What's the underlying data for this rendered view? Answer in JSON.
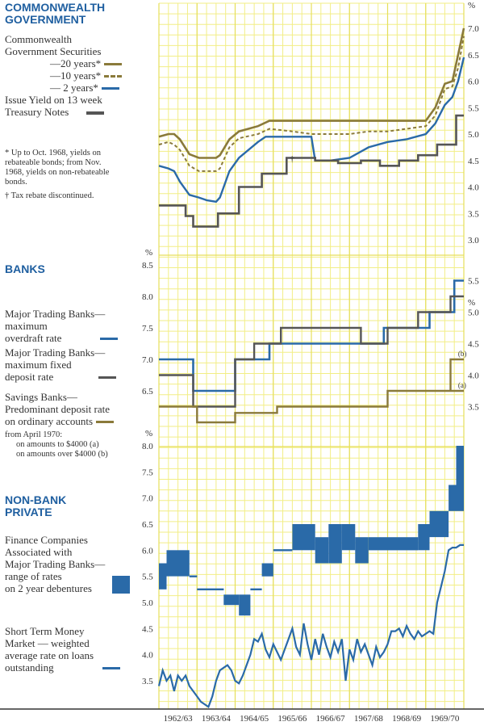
{
  "colors": {
    "grid": "#f2ee86",
    "gold": "#8a7a3a",
    "blue": "#2a6aa8",
    "grey": "#555555",
    "heading": "#1f5fa0"
  },
  "sections": {
    "government": {
      "heading": "COMMONWEALTH GOVERNMENT",
      "heading_l1": "COMMONWEALTH",
      "heading_l2": "GOVERNMENT",
      "legend_title_l1": "Commonwealth",
      "legend_title_l2": "Government Securities",
      "legend": {
        "y20": "—20 years*",
        "y10": "—10 years*",
        "y2": "— 2 years*",
        "tn_l1": "Issue Yield on 13 week",
        "tn_l2": "Treasury Notes"
      },
      "footnote_l1": "* Up to Oct. 1968, yields on",
      "footnote_l2": "rebateable bonds; from Nov.",
      "footnote_l3": "1968, yields on non-rebateable",
      "footnote_l4": "bonds.",
      "tax_note": "† Tax rebate discontinued.",
      "dagger": "†"
    },
    "banks": {
      "heading": "BANKS",
      "overdraft_l1": "Major Trading Banks—",
      "overdraft_l2": "maximum",
      "overdraft_l3": "overdraft rate",
      "deposit_l1": "Major Trading Banks—",
      "deposit_l2": "maximum fixed",
      "deposit_l3": "deposit rate",
      "savings_l1": "Savings Banks—",
      "savings_l2": "Predominant deposit rate",
      "savings_l3": "on ordinary accounts",
      "april_l1": "from April 1970:",
      "april_l2": "on amounts to $4000 (a)",
      "april_l3": "on amounts over $4000 (b)",
      "mark_a": "a",
      "mark_b": "b"
    },
    "nonbank": {
      "heading_l1": "NON-BANK",
      "heading_l2": "PRIVATE",
      "finance_l1": "Finance Companies",
      "finance_l2": "Associated with",
      "finance_l3": "Major Trading Banks—",
      "finance_l4": "range of rates",
      "finance_l5": "on 2 year debentures",
      "money_l1": "Short Term Money",
      "money_l2": "Market — weighted",
      "money_l3": "average rate on loans",
      "money_l4": "outstanding"
    }
  },
  "chart_data": [
    {
      "type": "line",
      "panel": "government",
      "x_categories": [
        "1962/63",
        "1963/64",
        "1964/65",
        "1965/66",
        "1966/67",
        "1967/68",
        "1968/69",
        "1969/70"
      ],
      "x_range": [
        1962.5,
        1970.5
      ],
      "unit": "%",
      "y_ticks": [
        "7.0",
        "6.5",
        "6.0",
        "5.5",
        "5.0",
        "4.5",
        "4.0",
        "3.5",
        "3.0"
      ],
      "ylim": [
        3.0,
        7.0
      ],
      "axis_side": "right",
      "series": [
        {
          "name": "20 years",
          "style": "solid-gold",
          "x": [
            1962.5,
            1962.75,
            1962.9,
            1963.05,
            1963.3,
            1963.55,
            1963.75,
            1964.0,
            1964.1,
            1964.35,
            1964.6,
            1965.1,
            1965.4,
            1966.0,
            1966.5,
            1967.0,
            1967.5,
            1968.0,
            1968.5,
            1969.0,
            1969.5,
            1969.75,
            1970.0,
            1970.2,
            1970.35,
            1970.5
          ],
          "y": [
            4.95,
            5.0,
            5.0,
            4.9,
            4.62,
            4.55,
            4.55,
            4.55,
            4.6,
            4.9,
            5.05,
            5.15,
            5.25,
            5.25,
            5.25,
            5.25,
            5.25,
            5.25,
            5.25,
            5.25,
            5.25,
            5.5,
            5.95,
            6.0,
            6.5,
            7.0
          ]
        },
        {
          "name": "10 years",
          "style": "dashed-gold",
          "x": [
            1962.5,
            1962.75,
            1962.9,
            1963.05,
            1963.3,
            1963.55,
            1963.75,
            1964.0,
            1964.1,
            1964.35,
            1964.6,
            1965.1,
            1965.4,
            1966.0,
            1966.5,
            1967.0,
            1967.5,
            1968.0,
            1968.5,
            1969.0,
            1969.5,
            1969.75,
            1970.0,
            1970.2,
            1970.35,
            1970.5
          ],
          "y": [
            4.8,
            4.85,
            4.8,
            4.7,
            4.4,
            4.3,
            4.3,
            4.3,
            4.35,
            4.75,
            4.92,
            5.0,
            5.1,
            5.05,
            5.0,
            5.0,
            5.0,
            5.05,
            5.05,
            5.1,
            5.15,
            5.35,
            5.85,
            5.9,
            6.25,
            6.85
          ]
        },
        {
          "name": "2 years",
          "style": "solid-blue",
          "x": [
            1962.5,
            1962.75,
            1962.9,
            1963.05,
            1963.3,
            1963.55,
            1963.75,
            1964.0,
            1964.1,
            1964.35,
            1964.6,
            1965.1,
            1965.3,
            1966.0,
            1966.5,
            1966.6,
            1967.0,
            1967.5,
            1968.0,
            1968.5,
            1969.0,
            1969.5,
            1969.75,
            1970.0,
            1970.2,
            1970.35,
            1970.5
          ],
          "y": [
            4.4,
            4.35,
            4.3,
            4.1,
            3.85,
            3.8,
            3.75,
            3.72,
            3.8,
            4.3,
            4.55,
            4.85,
            4.95,
            4.95,
            4.95,
            4.5,
            4.5,
            4.55,
            4.75,
            4.85,
            4.9,
            5.0,
            5.2,
            5.55,
            5.7,
            6.0,
            6.45
          ]
        },
        {
          "name": "Issue Yield on 13 week Treasury Notes",
          "style": "step-grey",
          "x": [
            1962.5,
            1963.2,
            1963.2,
            1963.4,
            1963.4,
            1964.05,
            1964.05,
            1964.6,
            1964.6,
            1965.2,
            1965.2,
            1965.85,
            1965.85,
            1966.6,
            1966.6,
            1967.2,
            1967.2,
            1967.8,
            1967.8,
            1968.3,
            1968.3,
            1968.8,
            1968.8,
            1969.3,
            1969.3,
            1969.8,
            1969.8,
            1970.3,
            1970.3,
            1970.5
          ],
          "y": [
            3.65,
            3.65,
            3.45,
            3.45,
            3.25,
            3.25,
            3.5,
            3.5,
            4.0,
            4.0,
            4.25,
            4.25,
            4.55,
            4.55,
            4.5,
            4.5,
            4.45,
            4.45,
            4.5,
            4.5,
            4.4,
            4.4,
            4.5,
            4.5,
            4.6,
            4.6,
            4.8,
            4.8,
            5.35,
            5.35
          ]
        }
      ],
      "annotation": "Tax rebate discontinued"
    },
    {
      "type": "line",
      "panel": "banks",
      "x_range": [
        1962.5,
        1970.5
      ],
      "unit": "%",
      "left_axis": {
        "ticks": [
          "8.5",
          "8.0",
          "7.5",
          "7.0",
          "6.5"
        ],
        "ylim": [
          6.0,
          8.5
        ]
      },
      "right_axis": {
        "ticks": [
          "5.5",
          "5.0",
          "4.5",
          "4.0",
          "3.5"
        ],
        "ylim": [
          3.25,
          5.75
        ]
      },
      "series": [
        {
          "name": "Major Trading Banks—maximum overdraft rate",
          "axis": "left",
          "style": "step-blue",
          "x": [
            1962.5,
            1963.4,
            1963.4,
            1964.5,
            1964.5,
            1965.4,
            1965.4,
            1968.4,
            1968.4,
            1969.6,
            1969.6,
            1970.25,
            1970.25,
            1970.5
          ],
          "y": [
            7.0,
            7.0,
            6.5,
            6.5,
            7.0,
            7.0,
            7.25,
            7.25,
            7.5,
            7.5,
            7.75,
            7.75,
            8.25,
            8.25
          ]
        },
        {
          "name": "Major Trading Banks—maximum fixed deposit rate",
          "axis": "right",
          "style": "step-grey",
          "x": [
            1962.5,
            1963.4,
            1963.4,
            1964.5,
            1964.5,
            1965.0,
            1965.0,
            1965.7,
            1965.7,
            1967.8,
            1967.8,
            1968.5,
            1968.5,
            1969.3,
            1969.3,
            1970.15,
            1970.15,
            1970.5
          ],
          "y": [
            4.0,
            4.0,
            3.5,
            3.5,
            4.25,
            4.25,
            4.5,
            4.5,
            4.75,
            4.75,
            4.5,
            4.5,
            4.75,
            4.75,
            5.0,
            5.0,
            5.25,
            5.25
          ]
        },
        {
          "name": "Savings Banks—Predominant deposit rate on ordinary accounts",
          "axis": "right",
          "style": "step-gold",
          "x": [
            1962.5,
            1963.5,
            1963.5,
            1964.5,
            1964.5,
            1965.6,
            1965.6,
            1968.5,
            1968.5,
            1970.15,
            1970.15,
            1970.5
          ],
          "y": [
            3.5,
            3.5,
            3.25,
            3.25,
            3.4,
            3.4,
            3.5,
            3.5,
            3.75,
            3.75,
            3.75,
            3.75
          ]
        },
        {
          "name": "on amounts over $4000 (b)",
          "axis": "right",
          "style": "step-gold",
          "x": [
            1970.15,
            1970.15,
            1970.5
          ],
          "y": [
            3.75,
            4.25,
            4.25
          ]
        }
      ]
    },
    {
      "type": "area",
      "panel": "nonbank",
      "x_range": [
        1962.5,
        1970.5
      ],
      "unit": "%",
      "y_ticks": [
        "8.0",
        "7.5",
        "7.0",
        "6.5",
        "6.0",
        "5.5",
        "5.0",
        "4.5",
        "4.0",
        "3.5"
      ],
      "ylim": [
        3.0,
        8.0
      ],
      "axis_side": "left",
      "series": [
        {
          "name": "Finance Companies Associated with Major Trading Banks—range of rates on 2 year debentures",
          "style": "band-blue",
          "ranges": [
            [
              1962.5,
              1962.7,
              5.25,
              5.75
            ],
            [
              1962.7,
              1963.3,
              5.5,
              6.0
            ],
            [
              1963.3,
              1963.5,
              5.5,
              5.5
            ],
            [
              1963.5,
              1964.2,
              5.25,
              5.25
            ],
            [
              1964.2,
              1964.6,
              4.95,
              5.15
            ],
            [
              1964.6,
              1964.9,
              4.75,
              5.15
            ],
            [
              1964.9,
              1965.2,
              5.25,
              5.25
            ],
            [
              1965.2,
              1965.5,
              5.5,
              5.75
            ],
            [
              1965.5,
              1966.0,
              6.0,
              6.0
            ],
            [
              1966.0,
              1966.6,
              6.0,
              6.5
            ],
            [
              1966.6,
              1966.95,
              5.75,
              6.25
            ],
            [
              1966.95,
              1967.3,
              5.75,
              6.5
            ],
            [
              1967.3,
              1967.65,
              6.0,
              6.5
            ],
            [
              1967.65,
              1968.0,
              5.75,
              6.25
            ],
            [
              1968.0,
              1968.3,
              6.0,
              6.25
            ],
            [
              1968.3,
              1969.3,
              6.0,
              6.25
            ],
            [
              1969.3,
              1969.6,
              6.0,
              6.5
            ],
            [
              1969.6,
              1970.1,
              6.25,
              6.75
            ],
            [
              1970.1,
              1970.3,
              6.75,
              7.25
            ],
            [
              1970.3,
              1970.5,
              6.75,
              8.0
            ]
          ]
        },
        {
          "name": "Short Term Money Market — weighted average rate on loans outstanding",
          "style": "line-blue",
          "x": [
            1962.5,
            1962.6,
            1962.7,
            1962.8,
            1962.9,
            1963.0,
            1963.1,
            1963.2,
            1963.3,
            1963.4,
            1963.5,
            1963.6,
            1963.7,
            1963.8,
            1963.9,
            1964.0,
            1964.1,
            1964.2,
            1964.3,
            1964.4,
            1964.5,
            1964.6,
            1964.7,
            1964.8,
            1964.9,
            1965.0,
            1965.1,
            1965.2,
            1965.3,
            1965.4,
            1965.5,
            1965.6,
            1965.7,
            1965.8,
            1965.9,
            1966.0,
            1966.1,
            1966.2,
            1966.3,
            1966.4,
            1966.5,
            1966.6,
            1966.7,
            1966.8,
            1966.9,
            1967.0,
            1967.1,
            1967.2,
            1967.3,
            1967.4,
            1967.5,
            1967.6,
            1967.7,
            1967.8,
            1967.9,
            1968.0,
            1968.1,
            1968.2,
            1968.3,
            1968.4,
            1968.5,
            1968.6,
            1968.7,
            1968.8,
            1968.9,
            1969.0,
            1969.1,
            1969.2,
            1969.3,
            1969.4,
            1969.5,
            1969.6,
            1969.7,
            1969.8,
            1969.9,
            1970.0,
            1970.1,
            1970.2,
            1970.3,
            1970.4,
            1970.5
          ],
          "y": [
            3.4,
            3.7,
            3.5,
            3.6,
            3.3,
            3.6,
            3.5,
            3.6,
            3.4,
            3.3,
            3.2,
            3.1,
            3.05,
            3.0,
            3.2,
            3.5,
            3.7,
            3.75,
            3.8,
            3.7,
            3.5,
            3.45,
            3.6,
            3.8,
            4.0,
            4.3,
            4.25,
            4.4,
            4.1,
            3.95,
            4.2,
            4.05,
            3.9,
            4.1,
            4.3,
            4.5,
            4.15,
            4.0,
            4.6,
            4.2,
            3.9,
            4.3,
            4.0,
            4.4,
            4.15,
            3.95,
            4.25,
            4.05,
            4.3,
            3.5,
            4.1,
            3.9,
            4.3,
            4.05,
            4.2,
            4.0,
            3.8,
            4.15,
            3.95,
            4.05,
            4.2,
            4.45,
            4.45,
            4.5,
            4.35,
            4.55,
            4.4,
            4.3,
            4.45,
            4.35,
            4.4,
            4.45,
            4.4,
            5.0,
            5.3,
            5.6,
            6.0,
            6.05,
            6.05,
            6.1,
            6.1
          ]
        }
      ]
    }
  ]
}
